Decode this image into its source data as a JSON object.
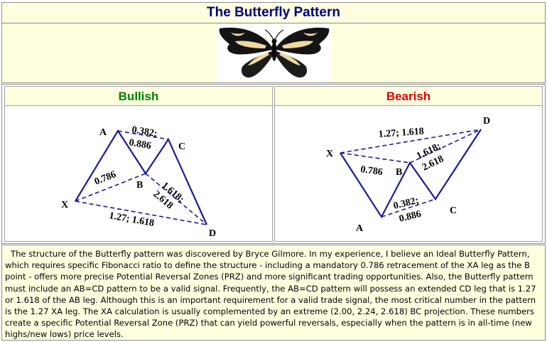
{
  "title": "The Butterfly Pattern",
  "image": {
    "icon": "butterfly-icon"
  },
  "bullish": {
    "heading": "Bullish",
    "points": {
      "a": "A",
      "b": "B",
      "c": "C",
      "d": "D",
      "x": "X"
    },
    "ratios": {
      "ac_1": "0.382;",
      "ac_2": "0.886",
      "xb": "0.786",
      "bd_1": "1.618;",
      "bd_2": "2.618",
      "xd": "1.27; 1.618"
    }
  },
  "bearish": {
    "heading": "Bearish",
    "points": {
      "a": "A",
      "b": "B",
      "c": "C",
      "d": "D",
      "x": "X"
    },
    "ratios": {
      "xd": "1.27; 1.618",
      "xb": "0.786",
      "bd_1": "1.618;",
      "bd_2": "2.618",
      "ac_1": "0.382;",
      "ac_2": "0.886"
    }
  },
  "colors": {
    "title": "#000080",
    "bullish": "#008000",
    "bearish": "#e00000",
    "line": "#1a1a9c",
    "panel": "#ffffe0"
  },
  "description": "The structure of the Butterfly pattern was discovered by Bryce Gilmore. In my experience, I believe an Ideal Butterfly Pattern, which requires specific Fibonacci ratio to define the structure - including a mandatory 0.786 retracement of the XA leg as the B point - offers more precise Potential Reversal Zones (PRZ) and more significant trading opportunities.  Also, the Butterfly pattern must include an AB=CD pattern to be a valid signal. Frequently, the AB=CD pattern will possess an extended CD leg that is 1.27 or 1.618 of the AB leg. Although this is an important requirement for a valid trade signal, the most critical number in the pattern is the 1.27 XA leg.  The XA calculation is usually complemented by an extreme (2.00, 2.24, 2.618) BC projection. These numbers create a specific Potential Reversal Zone (PRZ) that can yield powerful reversals, especially when the pattern is in all-time (new highs/new lows) price levels."
}
